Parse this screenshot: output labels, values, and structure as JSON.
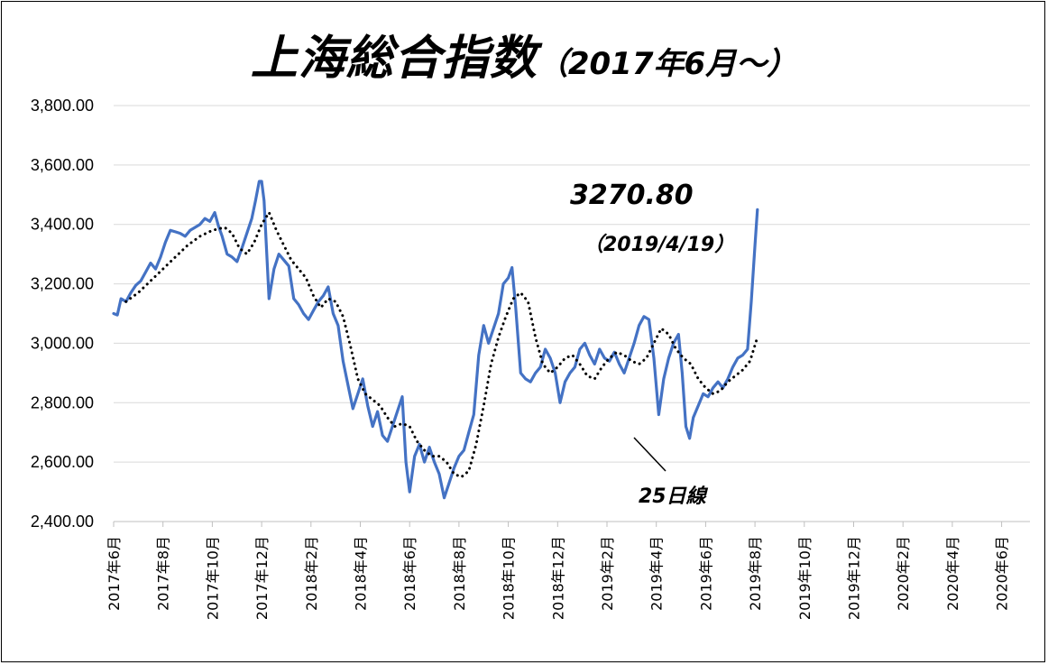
{
  "chart_data": {
    "type": "line",
    "title": "上海総合指数",
    "subtitle": "（2017年6月～）",
    "ylim": [
      2400,
      3800
    ],
    "yticks": [
      "3,800.00",
      "3,600.00",
      "3,400.00",
      "3,200.00",
      "3,000.00",
      "2,800.00",
      "2,600.00",
      "2,400.00"
    ],
    "ytick_values": [
      3800,
      3600,
      3400,
      3200,
      3000,
      2800,
      2600,
      2400
    ],
    "xticks": [
      "2017年6月",
      "2017年8月",
      "2017年10月",
      "2017年12月",
      "2018年2月",
      "2018年4月",
      "2018年6月",
      "2018年8月",
      "2018年10月",
      "2018年12月",
      "2019年2月",
      "2019年4月",
      "2019年6月",
      "2019年8月",
      "2019年10月",
      "2019年12月",
      "2020年2月",
      "2020年4月",
      "2020年6月"
    ],
    "grid": true,
    "series": [
      {
        "name": "",
        "color": "#4472C4",
        "style": "solid",
        "values": [
          [
            0,
            3100
          ],
          [
            0.15,
            3095
          ],
          [
            0.3,
            3150
          ],
          [
            0.5,
            3140
          ],
          [
            0.7,
            3170
          ],
          [
            0.9,
            3195
          ],
          [
            1.1,
            3210
          ],
          [
            1.3,
            3240
          ],
          [
            1.5,
            3270
          ],
          [
            1.7,
            3250
          ],
          [
            1.9,
            3290
          ],
          [
            2.1,
            3340
          ],
          [
            2.3,
            3380
          ],
          [
            2.5,
            3375
          ],
          [
            2.7,
            3370
          ],
          [
            2.9,
            3360
          ],
          [
            3.1,
            3380
          ],
          [
            3.3,
            3390
          ],
          [
            3.5,
            3400
          ],
          [
            3.7,
            3420
          ],
          [
            3.9,
            3410
          ],
          [
            4.1,
            3440
          ],
          [
            4.25,
            3395
          ],
          [
            4.4,
            3360
          ],
          [
            4.6,
            3300
          ],
          [
            4.8,
            3290
          ],
          [
            5.0,
            3275
          ],
          [
            5.2,
            3320
          ],
          [
            5.4,
            3370
          ],
          [
            5.6,
            3420
          ],
          [
            5.75,
            3480
          ],
          [
            5.9,
            3545
          ],
          [
            6.0,
            3545
          ],
          [
            6.1,
            3480
          ],
          [
            6.3,
            3150
          ],
          [
            6.5,
            3250
          ],
          [
            6.7,
            3300
          ],
          [
            6.9,
            3280
          ],
          [
            7.1,
            3260
          ],
          [
            7.3,
            3150
          ],
          [
            7.5,
            3130
          ],
          [
            7.7,
            3100
          ],
          [
            7.9,
            3080
          ],
          [
            8.1,
            3110
          ],
          [
            8.3,
            3140
          ],
          [
            8.5,
            3160
          ],
          [
            8.7,
            3190
          ],
          [
            8.9,
            3100
          ],
          [
            9.1,
            3060
          ],
          [
            9.3,
            2940
          ],
          [
            9.5,
            2860
          ],
          [
            9.7,
            2780
          ],
          [
            9.9,
            2830
          ],
          [
            10.1,
            2880
          ],
          [
            10.3,
            2790
          ],
          [
            10.5,
            2720
          ],
          [
            10.7,
            2770
          ],
          [
            10.9,
            2690
          ],
          [
            11.1,
            2670
          ],
          [
            11.3,
            2720
          ],
          [
            11.5,
            2770
          ],
          [
            11.7,
            2820
          ],
          [
            11.85,
            2600
          ],
          [
            12.0,
            2500
          ],
          [
            12.2,
            2620
          ],
          [
            12.4,
            2660
          ],
          [
            12.6,
            2600
          ],
          [
            12.8,
            2650
          ],
          [
            13.0,
            2600
          ],
          [
            13.2,
            2560
          ],
          [
            13.4,
            2480
          ],
          [
            13.6,
            2530
          ],
          [
            13.8,
            2580
          ],
          [
            14.0,
            2620
          ],
          [
            14.2,
            2640
          ],
          [
            14.4,
            2700
          ],
          [
            14.6,
            2760
          ],
          [
            14.8,
            2960
          ],
          [
            15.0,
            3060
          ],
          [
            15.2,
            3000
          ],
          [
            15.4,
            3050
          ],
          [
            15.6,
            3100
          ],
          [
            15.8,
            3200
          ],
          [
            16.0,
            3220
          ],
          [
            16.15,
            3255
          ],
          [
            16.3,
            3120
          ],
          [
            16.5,
            2900
          ],
          [
            16.7,
            2880
          ],
          [
            16.9,
            2870
          ],
          [
            17.1,
            2900
          ],
          [
            17.3,
            2920
          ],
          [
            17.5,
            2980
          ],
          [
            17.7,
            2950
          ],
          [
            17.9,
            2900
          ],
          [
            18.1,
            2800
          ],
          [
            18.3,
            2870
          ],
          [
            18.5,
            2900
          ],
          [
            18.7,
            2920
          ],
          [
            18.9,
            2980
          ],
          [
            19.1,
            3000
          ],
          [
            19.3,
            2960
          ],
          [
            19.5,
            2930
          ],
          [
            19.7,
            2980
          ],
          [
            19.9,
            2950
          ],
          [
            20.1,
            2940
          ],
          [
            20.3,
            2970
          ],
          [
            20.5,
            2930
          ],
          [
            20.7,
            2900
          ],
          [
            20.9,
            2950
          ],
          [
            21.1,
            3000
          ],
          [
            21.3,
            3060
          ],
          [
            21.5,
            3090
          ],
          [
            21.7,
            3080
          ],
          [
            21.9,
            2950
          ],
          [
            22.1,
            2760
          ],
          [
            22.3,
            2880
          ],
          [
            22.5,
            2950
          ],
          [
            22.7,
            3000
          ],
          [
            22.9,
            3030
          ],
          [
            23.05,
            2900
          ],
          [
            23.2,
            2720
          ],
          [
            23.35,
            2680
          ],
          [
            23.5,
            2750
          ],
          [
            23.7,
            2790
          ],
          [
            23.9,
            2830
          ],
          [
            24.1,
            2820
          ],
          [
            24.3,
            2850
          ],
          [
            24.5,
            2870
          ],
          [
            24.7,
            2850
          ],
          [
            24.9,
            2880
          ],
          [
            25.1,
            2920
          ],
          [
            25.3,
            2950
          ],
          [
            25.5,
            2960
          ],
          [
            25.7,
            2980
          ],
          [
            25.85,
            3140
          ],
          [
            26.0,
            3330
          ],
          [
            26.1,
            3450
          ]
        ]
      },
      {
        "name": "25日線",
        "color": "#000000",
        "style": "dotted",
        "values": [
          [
            0.5,
            3140
          ],
          [
            1.0,
            3170
          ],
          [
            1.5,
            3210
          ],
          [
            2.0,
            3250
          ],
          [
            2.5,
            3290
          ],
          [
            3.0,
            3330
          ],
          [
            3.5,
            3360
          ],
          [
            4.0,
            3380
          ],
          [
            4.5,
            3390
          ],
          [
            4.8,
            3370
          ],
          [
            5.1,
            3320
          ],
          [
            5.4,
            3300
          ],
          [
            5.7,
            3340
          ],
          [
            6.0,
            3400
          ],
          [
            6.3,
            3440
          ],
          [
            6.6,
            3380
          ],
          [
            6.9,
            3330
          ],
          [
            7.2,
            3280
          ],
          [
            7.5,
            3250
          ],
          [
            7.8,
            3220
          ],
          [
            8.1,
            3160
          ],
          [
            8.4,
            3120
          ],
          [
            8.7,
            3150
          ],
          [
            9.0,
            3140
          ],
          [
            9.3,
            3090
          ],
          [
            9.6,
            2990
          ],
          [
            9.9,
            2880
          ],
          [
            10.2,
            2830
          ],
          [
            10.5,
            2810
          ],
          [
            10.8,
            2790
          ],
          [
            11.1,
            2750
          ],
          [
            11.4,
            2720
          ],
          [
            11.7,
            2730
          ],
          [
            12.0,
            2720
          ],
          [
            12.3,
            2670
          ],
          [
            12.6,
            2640
          ],
          [
            12.9,
            2620
          ],
          [
            13.2,
            2620
          ],
          [
            13.5,
            2600
          ],
          [
            13.8,
            2560
          ],
          [
            14.1,
            2550
          ],
          [
            14.4,
            2570
          ],
          [
            14.7,
            2660
          ],
          [
            15.0,
            2790
          ],
          [
            15.3,
            2930
          ],
          [
            15.6,
            3020
          ],
          [
            15.9,
            3090
          ],
          [
            16.2,
            3150
          ],
          [
            16.5,
            3170
          ],
          [
            16.8,
            3140
          ],
          [
            17.1,
            3020
          ],
          [
            17.4,
            2930
          ],
          [
            17.7,
            2900
          ],
          [
            18.0,
            2920
          ],
          [
            18.3,
            2950
          ],
          [
            18.6,
            2960
          ],
          [
            18.9,
            2930
          ],
          [
            19.2,
            2890
          ],
          [
            19.5,
            2880
          ],
          [
            19.8,
            2920
          ],
          [
            20.1,
            2950
          ],
          [
            20.4,
            2970
          ],
          [
            20.7,
            2960
          ],
          [
            21.0,
            2940
          ],
          [
            21.3,
            2930
          ],
          [
            21.6,
            2950
          ],
          [
            21.9,
            3000
          ],
          [
            22.2,
            3050
          ],
          [
            22.5,
            3030
          ],
          [
            22.8,
            2980
          ],
          [
            23.1,
            2950
          ],
          [
            23.4,
            2930
          ],
          [
            23.7,
            2880
          ],
          [
            24.0,
            2850
          ],
          [
            24.3,
            2830
          ],
          [
            24.6,
            2840
          ],
          [
            24.9,
            2870
          ],
          [
            25.2,
            2890
          ],
          [
            25.5,
            2910
          ],
          [
            25.8,
            2940
          ],
          [
            26.1,
            3020
          ]
        ]
      }
    ],
    "annotations": {
      "peak_value": "3270.80",
      "peak_date": "（2019/4/19）",
      "ma_label": "25日線"
    }
  }
}
